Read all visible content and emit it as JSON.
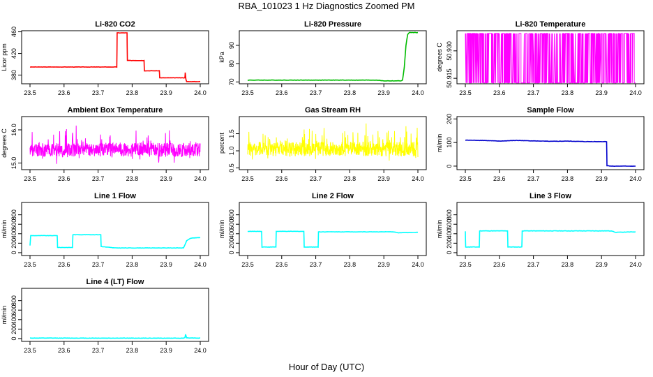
{
  "figure": {
    "title": "RBA_101023  1 Hz Diagnostics Zoomed PM",
    "xlabel": "Hour of Day (UTC)"
  },
  "chart_data": [
    {
      "id": "co2",
      "type": "line",
      "title": "Li-820 CO2",
      "ylabel": "Licor ppm",
      "color": "#ff0000",
      "xlim": [
        23.5,
        24.0
      ],
      "ylim": [
        364,
        462
      ],
      "xticks": [
        "23.5",
        "23.6",
        "23.7",
        "23.8",
        "23.9",
        "24.0"
      ],
      "yticks": [
        380,
        420,
        460
      ],
      "series": [
        {
          "x": [
            23.5,
            23.755,
            23.756,
            23.785,
            23.786,
            23.835,
            23.836,
            23.88,
            23.881,
            23.955,
            23.956,
            23.958,
            23.96,
            23.965,
            24.0
          ],
          "y": [
            395,
            395,
            458,
            458,
            407,
            407,
            388,
            388,
            375,
            375,
            385,
            372,
            368,
            368,
            368
          ]
        }
      ]
    },
    {
      "id": "pressure",
      "type": "line",
      "title": "Li-820 Pressure",
      "ylabel": "kPa",
      "color": "#00bb00",
      "xlim": [
        23.5,
        24.0
      ],
      "ylim": [
        69,
        98
      ],
      "xticks": [
        "23.5",
        "23.6",
        "23.7",
        "23.8",
        "23.9",
        "24.0"
      ],
      "yticks": [
        70,
        80,
        90
      ],
      "series": [
        {
          "x": [
            23.5,
            23.88,
            23.9,
            23.95,
            23.955,
            23.96,
            23.965,
            23.97,
            23.975,
            24.0
          ],
          "y": [
            71,
            71,
            70.6,
            70.6,
            71,
            78,
            90,
            96,
            97,
            97
          ]
        }
      ]
    },
    {
      "id": "temp",
      "type": "line",
      "title": "Li-820 Temperature",
      "ylabel": "degrees C",
      "color": "#ff00ff",
      "xlim": [
        23.5,
        24.0
      ],
      "ylim": [
        50.912,
        50.941
      ],
      "xticks": [
        "23.5",
        "23.6",
        "23.7",
        "23.8",
        "23.9",
        "24.0"
      ],
      "yticks": [
        "50.915",
        "50.930"
      ],
      "series": [
        {
          "low": 50.9125,
          "high": 50.9395,
          "seed": 7
        }
      ]
    },
    {
      "id": "ambient",
      "type": "line",
      "title": "Ambient Box Temperature",
      "ylabel": "degrees C",
      "color": "#ff00ff",
      "xlim": [
        23.5,
        24.0
      ],
      "ylim": [
        14.8,
        16.4
      ],
      "xticks": [
        "23.5",
        "23.6",
        "23.7",
        "23.8",
        "23.9",
        "24.0"
      ],
      "yticks": [
        "15.0",
        "16.0"
      ],
      "series": [
        {
          "center": 15.4,
          "spread": 0.35,
          "seed": 11
        }
      ]
    },
    {
      "id": "rh",
      "type": "line",
      "title": "Gas Stream RH",
      "ylabel": "percent",
      "color": "#ffff00",
      "xlim": [
        23.5,
        24.0
      ],
      "ylim": [
        0.45,
        2.0
      ],
      "xticks": [
        "23.5",
        "23.6",
        "23.7",
        "23.8",
        "23.9",
        "24.0"
      ],
      "yticks": [
        "0.5",
        "1.0",
        "1.5"
      ],
      "series": [
        {
          "center": 1.05,
          "spread": 0.35,
          "seed": 23
        }
      ]
    },
    {
      "id": "sample",
      "type": "line",
      "title": "Sample Flow",
      "ylabel": "ml/min",
      "color": "#0000cc",
      "xlim": [
        23.5,
        24.0
      ],
      "ylim": [
        -15,
        210
      ],
      "xticks": [
        "23.5",
        "23.6",
        "23.7",
        "23.8",
        "23.9",
        "24.0"
      ],
      "yticks": [
        0,
        100,
        200
      ],
      "series": [
        {
          "x": [
            23.5,
            23.55,
            23.6,
            23.65,
            23.7,
            23.75,
            23.8,
            23.85,
            23.9,
            23.915,
            23.916,
            23.93,
            24.0
          ],
          "y": [
            110,
            109,
            106,
            109,
            107,
            105,
            106,
            104,
            104,
            104,
            2,
            0,
            0
          ]
        }
      ]
    },
    {
      "id": "line1",
      "type": "line",
      "title": "Line 1 Flow",
      "ylabel": "ml/min",
      "color": "#00ffff",
      "xlim": [
        23.5,
        24.0
      ],
      "ylim": [
        -60,
        1060
      ],
      "xticks": [
        "23.5",
        "23.6",
        "23.7",
        "23.8",
        "23.9",
        "24.0"
      ],
      "yticks": [
        0,
        200,
        400,
        600,
        800
      ],
      "series": [
        {
          "x": [
            23.5,
            23.502,
            23.58,
            23.581,
            23.625,
            23.626,
            23.708,
            23.709,
            23.75,
            23.951,
            23.96,
            23.97,
            23.98,
            24.0
          ],
          "y": [
            150,
            360,
            360,
            110,
            110,
            380,
            380,
            130,
            100,
            100,
            250,
            300,
            310,
            320
          ]
        }
      ]
    },
    {
      "id": "line2",
      "type": "line",
      "title": "Line 2 Flow",
      "ylabel": "ml/min",
      "color": "#00ffff",
      "xlim": [
        23.5,
        24.0
      ],
      "ylim": [
        -60,
        1060
      ],
      "xticks": [
        "23.5",
        "23.6",
        "23.7",
        "23.8",
        "23.9",
        "24.0"
      ],
      "yticks": [
        0,
        200,
        400,
        600,
        800
      ],
      "series": [
        {
          "x": [
            23.5,
            23.541,
            23.542,
            23.583,
            23.584,
            23.665,
            23.666,
            23.707,
            23.708,
            23.93,
            23.94,
            24.0
          ],
          "y": [
            450,
            450,
            120,
            120,
            450,
            450,
            120,
            120,
            440,
            440,
            420,
            430
          ]
        }
      ]
    },
    {
      "id": "line3",
      "type": "line",
      "title": "Line 3 Flow",
      "ylabel": "ml/min",
      "color": "#00ffff",
      "xlim": [
        23.5,
        24.0
      ],
      "ylim": [
        -60,
        1060
      ],
      "xticks": [
        "23.5",
        "23.6",
        "23.7",
        "23.8",
        "23.9",
        "24.0"
      ],
      "yticks": [
        0,
        200,
        400,
        600,
        800
      ],
      "series": [
        {
          "x": [
            23.5,
            23.501,
            23.541,
            23.542,
            23.624,
            23.625,
            23.666,
            23.667,
            23.93,
            23.94,
            24.0
          ],
          "y": [
            450,
            120,
            120,
            460,
            460,
            120,
            120,
            460,
            460,
            430,
            440
          ]
        }
      ]
    },
    {
      "id": "line4",
      "type": "line",
      "title": "Line 4 (LT) Flow",
      "ylabel": "ml/min",
      "color": "#00ffff",
      "xlim": [
        23.5,
        24.0
      ],
      "ylim": [
        -60,
        1060
      ],
      "xticks": [
        "23.5",
        "23.6",
        "23.7",
        "23.8",
        "23.9",
        "24.0"
      ],
      "yticks": [
        0,
        200,
        400,
        600,
        800
      ],
      "series": [
        {
          "x": [
            23.5,
            23.95,
            23.955,
            23.957,
            23.96,
            24.0
          ],
          "y": [
            10,
            8,
            20,
            90,
            15,
            10
          ]
        }
      ]
    }
  ]
}
